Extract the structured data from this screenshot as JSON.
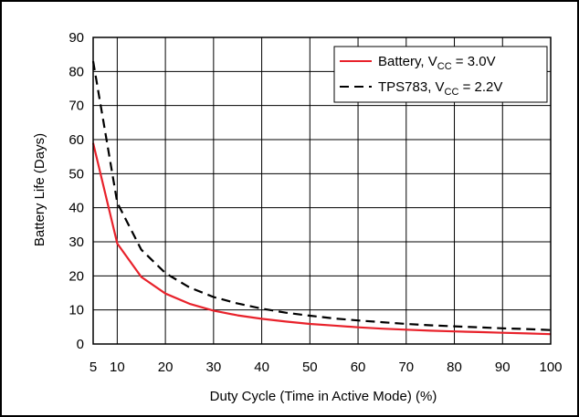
{
  "chart_data": {
    "type": "line",
    "xlabel": "Duty Cycle (Time in Active Mode) (%)",
    "ylabel": "Battery Life (Days)",
    "xlim": [
      5,
      100
    ],
    "ylim": [
      0,
      90
    ],
    "xticks": [
      5,
      10,
      20,
      30,
      40,
      50,
      60,
      70,
      80,
      90,
      100
    ],
    "yticks": [
      0,
      10,
      20,
      30,
      40,
      50,
      60,
      70,
      80,
      90
    ],
    "grid": true,
    "legend_position": "top-right",
    "series": [
      {
        "name": "Battery, V",
        "name_sub": "CC",
        "name_suffix": " = 3.0V",
        "color": "#e8222b",
        "dash": "solid",
        "x": [
          5,
          10,
          15,
          20,
          25,
          30,
          35,
          40,
          45,
          50,
          55,
          60,
          65,
          70,
          75,
          80,
          85,
          90,
          95,
          100
        ],
        "y": [
          59,
          29.5,
          19.7,
          14.8,
          11.8,
          9.8,
          8.4,
          7.4,
          6.6,
          5.9,
          5.4,
          4.9,
          4.5,
          4.2,
          3.9,
          3.7,
          3.5,
          3.3,
          3.1,
          2.9
        ]
      },
      {
        "name": "TPS783, V",
        "name_sub": "CC",
        "name_suffix": " = 2.2V",
        "color": "#000000",
        "dash": "dashed",
        "x": [
          5,
          10,
          15,
          20,
          25,
          30,
          35,
          40,
          45,
          50,
          55,
          60,
          65,
          70,
          75,
          80,
          85,
          90,
          95,
          100
        ],
        "y": [
          83,
          41.5,
          27.7,
          20.8,
          16.6,
          13.8,
          11.9,
          10.4,
          9.2,
          8.3,
          7.5,
          6.9,
          6.4,
          5.9,
          5.5,
          5.2,
          4.9,
          4.6,
          4.4,
          4.1
        ]
      }
    ]
  }
}
